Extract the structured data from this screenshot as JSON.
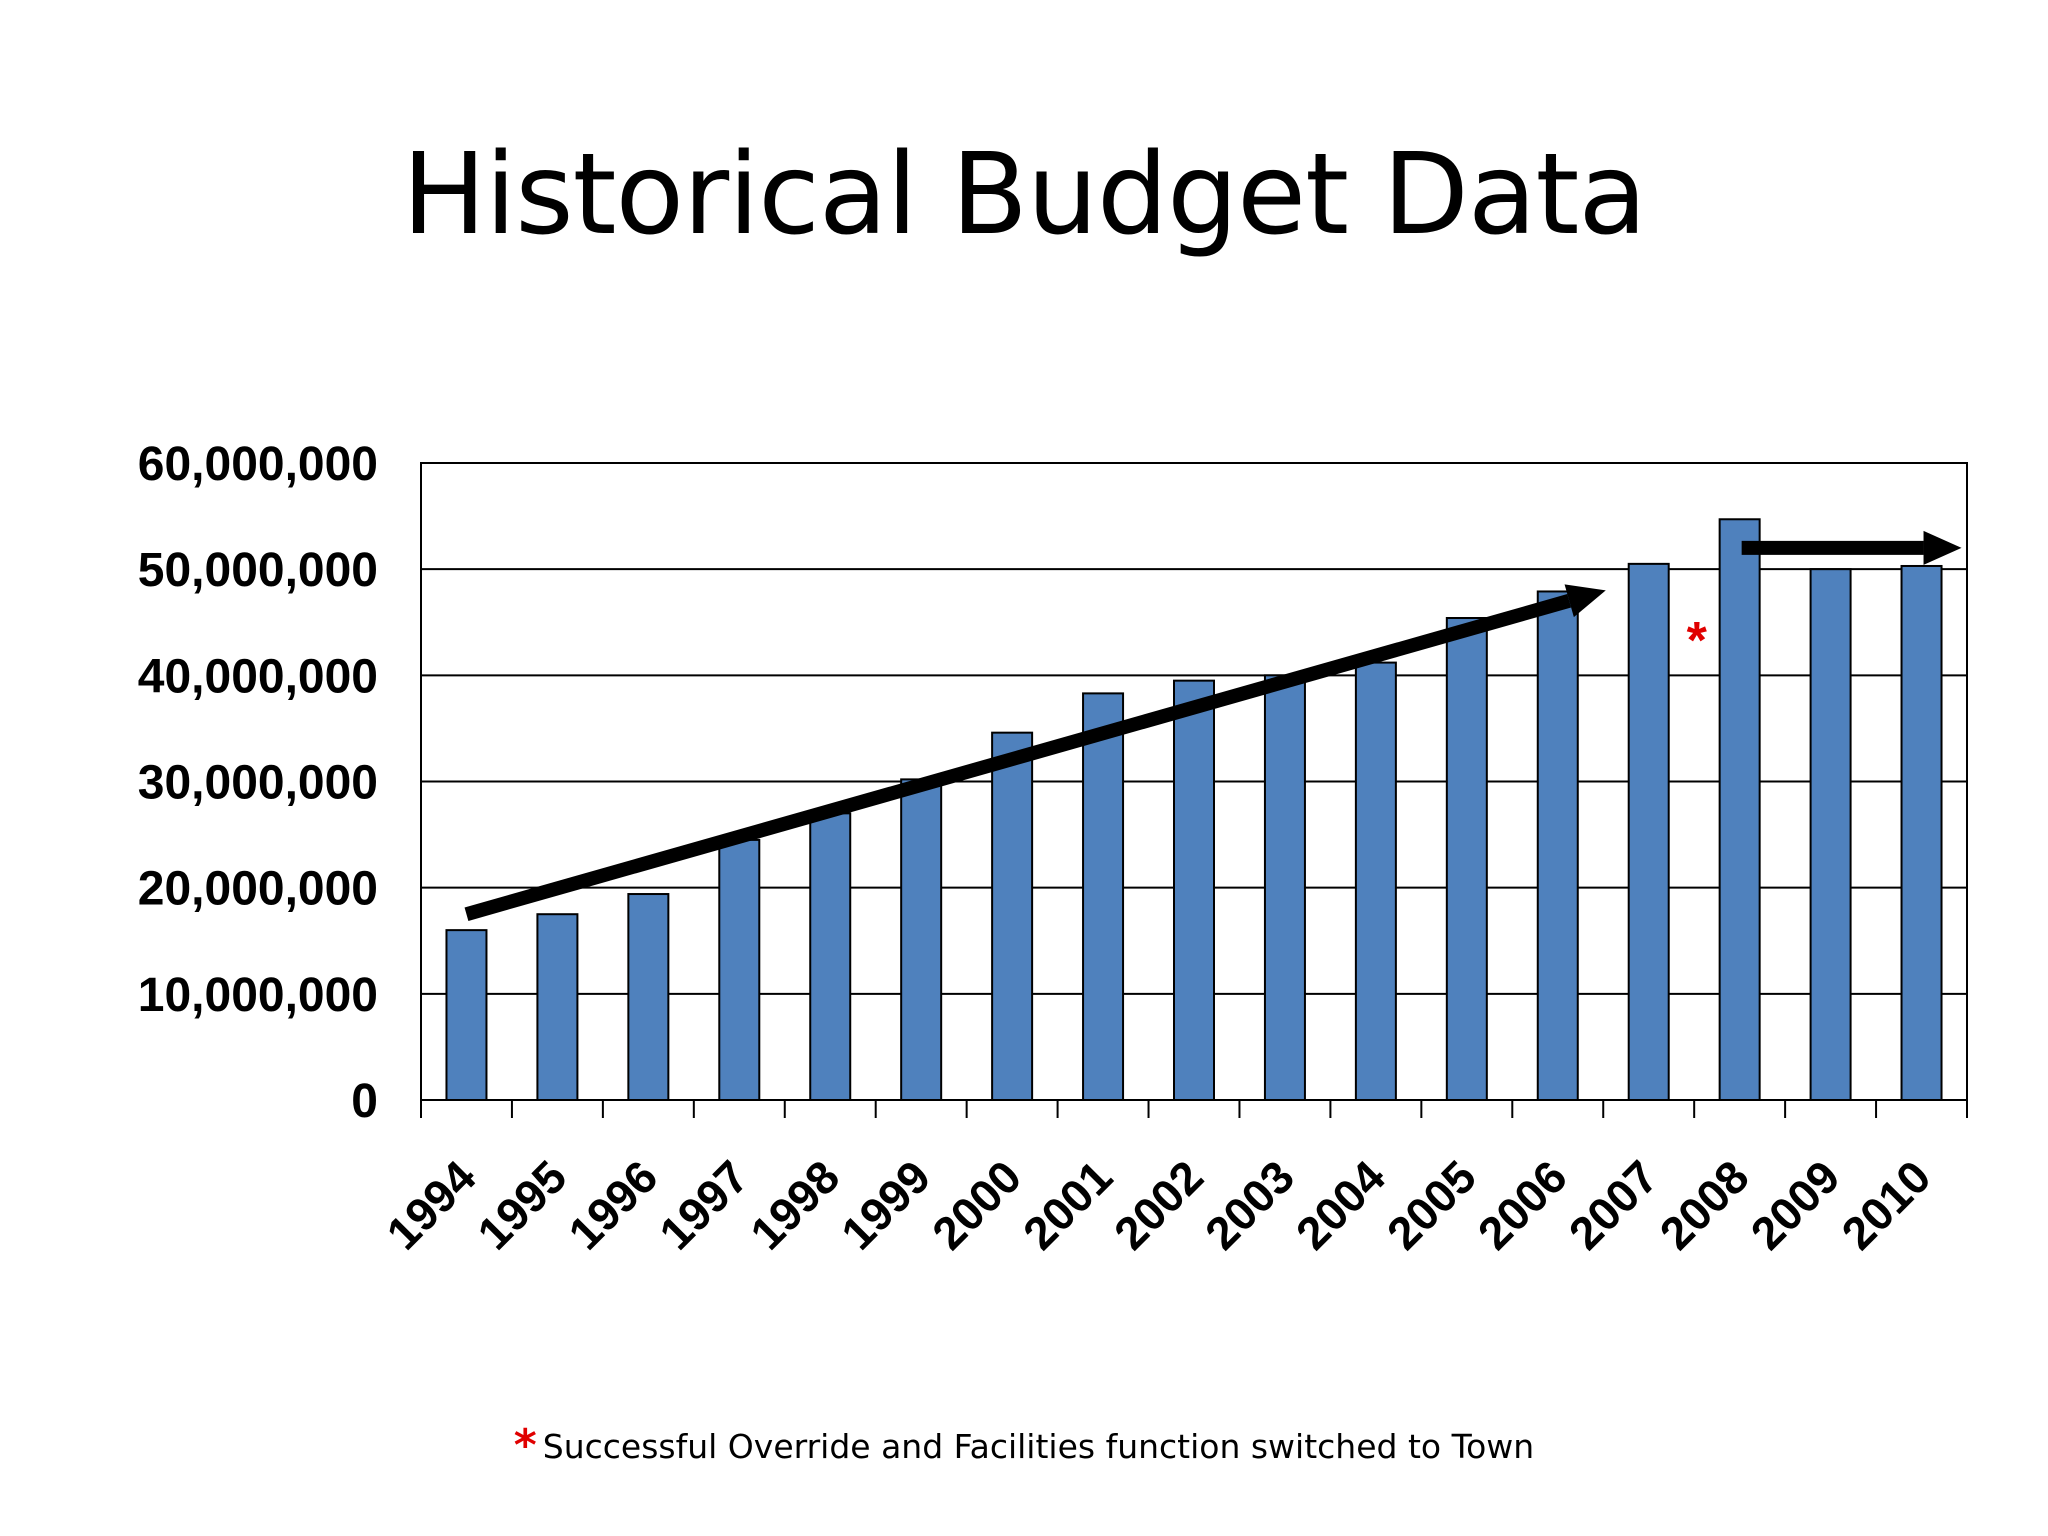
{
  "slide": {
    "title": "Historical Budget Data",
    "footnote_marker": "*",
    "footnote_text": "Successful Override and Facilities function switched to Town"
  },
  "chart_data": {
    "type": "bar",
    "title": "",
    "xlabel": "",
    "ylabel": "",
    "categories": [
      "1994",
      "1995",
      "1996",
      "1997",
      "1998",
      "1999",
      "2000",
      "2001",
      "2002",
      "2003",
      "2004",
      "2005",
      "2006",
      "2007",
      "2008",
      "2009",
      "2010"
    ],
    "values": [
      16000000,
      17500000,
      19400000,
      24500000,
      27000000,
      30200000,
      34600000,
      38300000,
      39500000,
      40000000,
      41200000,
      45400000,
      47900000,
      50500000,
      54700000,
      50000000,
      50300000
    ],
    "ylim": [
      0,
      60000000
    ],
    "yticks": [
      0,
      10000000,
      20000000,
      30000000,
      40000000,
      50000000,
      60000000
    ],
    "ytick_labels": [
      "0",
      "10,000,000",
      "20,000,000",
      "30,000,000",
      "40,000,000",
      "50,000,000",
      "60,000,000"
    ],
    "grid": true,
    "legend": "none",
    "bar_color": "#4f81bd",
    "annotations": [
      {
        "type": "trend-arrow",
        "from": {
          "x": "1994",
          "y": 17500000
        },
        "to": {
          "x": "2006",
          "y": 48000000
        }
      },
      {
        "type": "flat-arrow",
        "from": {
          "x": "2008",
          "y": 52000000
        },
        "to": {
          "x": "2010",
          "y": 52000000
        }
      },
      {
        "type": "marker",
        "text": "*",
        "color": "#e00000",
        "x": "2007",
        "y": 43500000
      }
    ]
  }
}
